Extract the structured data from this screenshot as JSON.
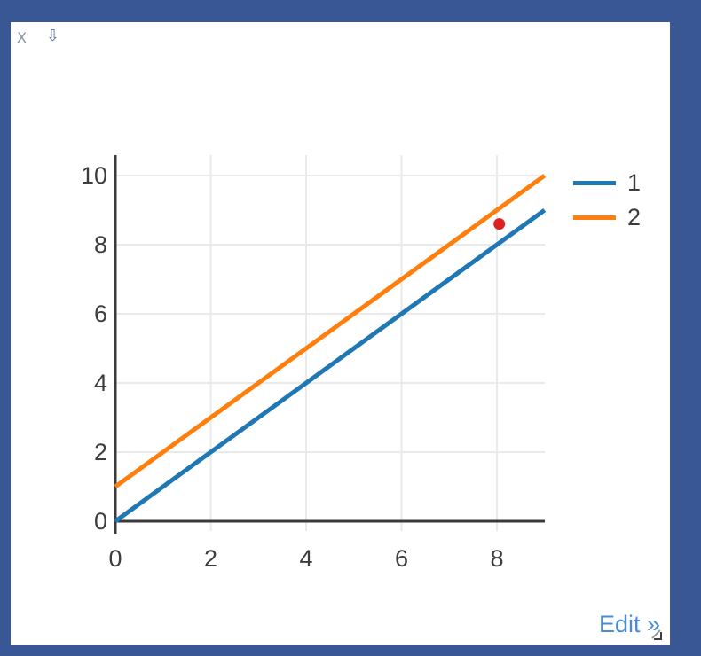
{
  "window": {
    "close_icon": "X",
    "arrow_icon": "⇩",
    "frame_color": "#3a5795",
    "background": "#ffffff"
  },
  "footer": {
    "edit_label": "Edit »",
    "edit_color": "#4a8bd4"
  },
  "chart_data": {
    "type": "line",
    "title": "",
    "xlabel": "",
    "ylabel": "",
    "xlim": [
      0,
      9
    ],
    "ylim": [
      0,
      10
    ],
    "x_ticks": [
      0,
      2,
      4,
      6,
      8
    ],
    "y_ticks": [
      0,
      2,
      4,
      6,
      8,
      10
    ],
    "grid": true,
    "grid_color": "#eaeaea",
    "axis_color": "#3a3a3a",
    "tick_label_color": "#3d3d3d",
    "legend_position": "right",
    "series": [
      {
        "name": "1",
        "color": "#1f77b4",
        "points": [
          [
            0,
            0
          ],
          [
            9,
            9
          ]
        ]
      },
      {
        "name": "2",
        "color": "#ff7f0e",
        "points": [
          [
            0,
            1
          ],
          [
            9,
            10
          ]
        ]
      }
    ],
    "scatter_points": [
      {
        "x": 8.05,
        "y": 8.6,
        "color": "#e02020"
      }
    ]
  }
}
